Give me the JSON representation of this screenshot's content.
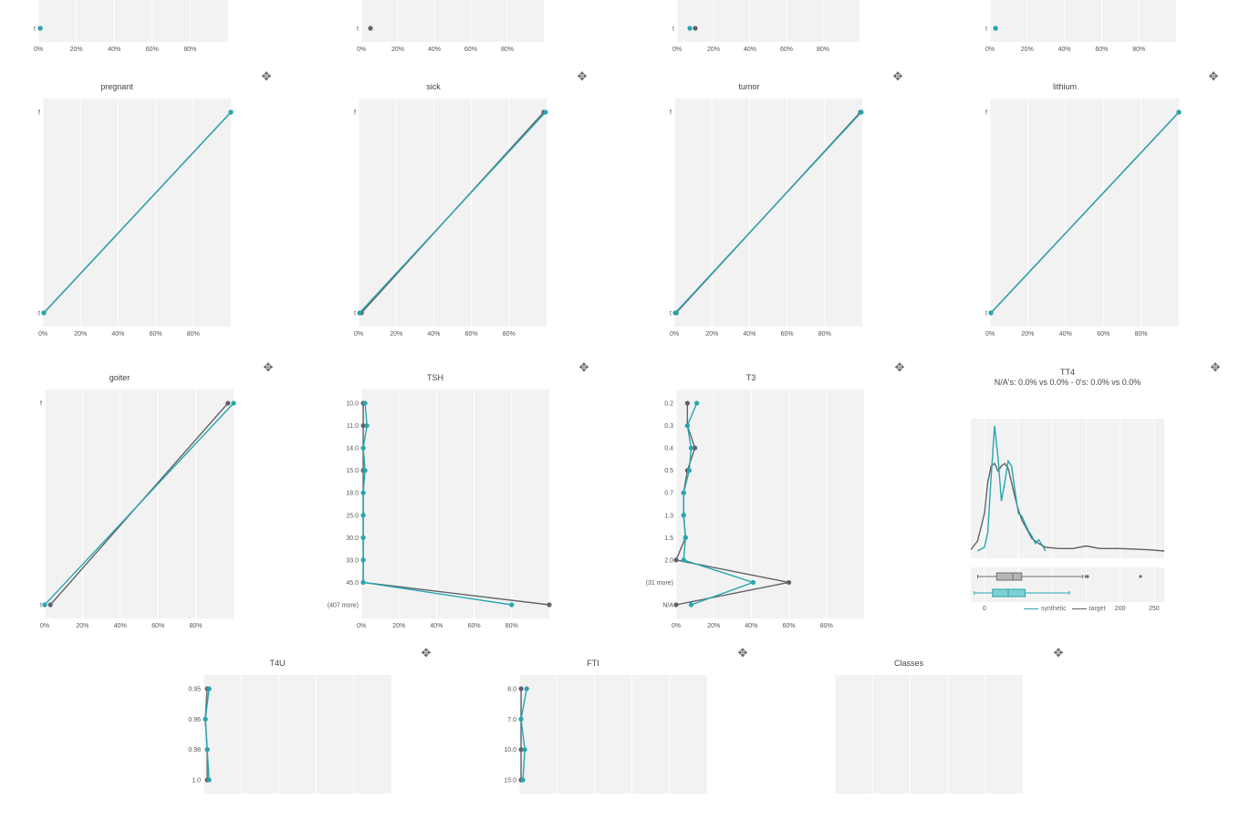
{
  "colors": {
    "synthetic": "#26a6b0",
    "target": "#5f6368",
    "plot_bg": "#f2f2f2",
    "grid": "#ffffff",
    "icon": "#6b6b6b"
  },
  "legend": {
    "synthetic": "synthetic",
    "target": "target"
  },
  "move_icon_glyph": "✥",
  "chart_data": [
    {
      "id": "c0",
      "type": "line",
      "title": "",
      "categories": [
        "t"
      ],
      "xticks": [
        "0%",
        "20%",
        "40%",
        "60%",
        "80%"
      ],
      "xlim": [
        0,
        100
      ],
      "series": [
        {
          "name": "target",
          "values": [
            1
          ]
        },
        {
          "name": "synthetic",
          "values": [
            1
          ]
        }
      ]
    },
    {
      "id": "c1",
      "type": "line",
      "title": "",
      "categories": [
        "t"
      ],
      "xticks": [
        "0%",
        "20%",
        "40%",
        "60%",
        "80%"
      ],
      "xlim": [
        0,
        100
      ],
      "series": [
        {
          "name": "target",
          "values": [
            5
          ]
        }
      ]
    },
    {
      "id": "c2",
      "type": "line",
      "title": "",
      "categories": [
        "t"
      ],
      "xticks": [
        "0%",
        "20%",
        "40%",
        "60%",
        "80%"
      ],
      "xlim": [
        0,
        100
      ],
      "series": [
        {
          "name": "target",
          "values": [
            10
          ]
        },
        {
          "name": "synthetic",
          "values": [
            7
          ]
        }
      ]
    },
    {
      "id": "c3",
      "type": "line",
      "title": "",
      "categories": [
        "t"
      ],
      "xticks": [
        "0%",
        "20%",
        "40%",
        "60%",
        "80%"
      ],
      "xlim": [
        0,
        100
      ],
      "series": [
        {
          "name": "target",
          "values": [
            3
          ]
        },
        {
          "name": "synthetic",
          "values": [
            3
          ]
        }
      ]
    },
    {
      "id": "pregnant",
      "type": "line",
      "title": "pregnant",
      "categories": [
        "f",
        "t"
      ],
      "xticks": [
        "0%",
        "20%",
        "40%",
        "60%",
        "80%"
      ],
      "xlim": [
        0,
        100
      ],
      "series": [
        {
          "name": "target",
          "values": [
            100,
            0.5
          ]
        },
        {
          "name": "synthetic",
          "values": [
            100,
            0.5
          ]
        }
      ]
    },
    {
      "id": "sick",
      "type": "line",
      "title": "sick",
      "categories": [
        "f",
        "t"
      ],
      "xticks": [
        "0%",
        "20%",
        "40%",
        "60%",
        "80%"
      ],
      "xlim": [
        0,
        100
      ],
      "series": [
        {
          "name": "target",
          "values": [
            98.5,
            1.5
          ]
        },
        {
          "name": "synthetic",
          "values": [
            99.5,
            0.5
          ]
        }
      ]
    },
    {
      "id": "tumor",
      "type": "line",
      "title": "tumor",
      "categories": [
        "f",
        "t"
      ],
      "xticks": [
        "0%",
        "20%",
        "40%",
        "60%",
        "80%"
      ],
      "xlim": [
        0,
        100
      ],
      "series": [
        {
          "name": "target",
          "values": [
            99,
            1
          ]
        },
        {
          "name": "synthetic",
          "values": [
            99.5,
            0.5
          ]
        }
      ]
    },
    {
      "id": "lithium",
      "type": "line",
      "title": "lithium",
      "categories": [
        "f",
        "t"
      ],
      "xticks": [
        "0%",
        "20%",
        "40%",
        "60%",
        "80%"
      ],
      "xlim": [
        0,
        100
      ],
      "series": [
        {
          "name": "target",
          "values": [
            100,
            0.5
          ]
        },
        {
          "name": "synthetic",
          "values": [
            100,
            0.5
          ]
        }
      ]
    },
    {
      "id": "goiter",
      "type": "line",
      "title": "goiter",
      "categories": [
        "f",
        "t"
      ],
      "xticks": [
        "0%",
        "20%",
        "40%",
        "60%",
        "80%"
      ],
      "xlim": [
        0,
        100
      ],
      "series": [
        {
          "name": "target",
          "values": [
            97,
            3
          ]
        },
        {
          "name": "synthetic",
          "values": [
            100,
            0
          ]
        }
      ]
    },
    {
      "id": "TSH",
      "type": "line",
      "title": "TSH",
      "categories": [
        "10.0",
        "11.0",
        "14.0",
        "15.0",
        "18.0",
        "25.0",
        "30.0",
        "33.0",
        "45.0",
        "(407 more)"
      ],
      "xticks": [
        "0%",
        "20%",
        "40%",
        "60%",
        "80%"
      ],
      "xlim": [
        0,
        100
      ],
      "series": [
        {
          "name": "target",
          "values": [
            1,
            1,
            1,
            1,
            1,
            1,
            1,
            1,
            1,
            100
          ]
        },
        {
          "name": "synthetic",
          "values": [
            2,
            3,
            1,
            2,
            1,
            1,
            1,
            1,
            1,
            80
          ]
        }
      ]
    },
    {
      "id": "T3",
      "type": "line",
      "title": "T3",
      "categories": [
        "0.2",
        "0.3",
        "0.4",
        "0.5",
        "0.7",
        "1.3",
        "1.5",
        "2.0",
        "(31 more)",
        "N/A"
      ],
      "xticks": [
        "0%",
        "20%",
        "40%",
        "60%",
        "80%"
      ],
      "xlim": [
        0,
        100
      ],
      "series": [
        {
          "name": "target",
          "values": [
            6,
            6,
            10,
            6,
            4,
            4,
            5,
            0,
            60,
            0
          ]
        },
        {
          "name": "synthetic",
          "values": [
            11,
            6,
            8,
            7,
            4,
            4,
            5,
            4,
            41,
            8
          ]
        }
      ]
    },
    {
      "id": "T4U",
      "type": "line",
      "title": "T4U",
      "categories": [
        "0.95",
        "0.96",
        "0.98",
        "1.0"
      ],
      "xticks": [],
      "xlim": [
        0,
        100
      ],
      "series": [
        {
          "name": "target",
          "values": [
            2,
            1,
            2,
            2
          ]
        },
        {
          "name": "synthetic",
          "values": [
            3,
            1,
            2,
            3
          ]
        }
      ]
    },
    {
      "id": "FTI",
      "type": "line",
      "title": "FTI",
      "categories": [
        "8.0",
        "7.0",
        "10.0",
        "15.0"
      ],
      "xticks": [],
      "xlim": [
        0,
        100
      ],
      "series": [
        {
          "name": "target",
          "values": [
            1,
            1,
            1,
            1
          ]
        },
        {
          "name": "synthetic",
          "values": [
            4,
            1,
            3,
            2
          ]
        }
      ]
    },
    {
      "id": "Classes",
      "type": "line",
      "title": "Classes",
      "categories": [],
      "xticks": [],
      "xlim": [
        0,
        100
      ],
      "series": []
    },
    {
      "id": "TT4",
      "type": "area",
      "title": "TT4",
      "subtitle": "N/A's: 0.0% vs 0.0% - 0's: 0.0% vs 0.0%",
      "xlim": [
        -20,
        265
      ],
      "xticks": [
        0,
        50,
        100,
        150,
        200,
        250
      ],
      "xtick_labels": [
        "0",
        "",
        "",
        "",
        "200",
        "250"
      ],
      "density": {
        "synthetic": [
          [
            -10,
            0
          ],
          [
            0,
            3
          ],
          [
            5,
            15
          ],
          [
            10,
            60
          ],
          [
            15,
            100
          ],
          [
            20,
            75
          ],
          [
            25,
            40
          ],
          [
            30,
            55
          ],
          [
            35,
            72
          ],
          [
            40,
            68
          ],
          [
            45,
            48
          ],
          [
            50,
            30
          ],
          [
            55,
            28
          ],
          [
            60,
            22
          ],
          [
            65,
            16
          ],
          [
            70,
            12
          ],
          [
            75,
            6
          ],
          [
            80,
            9
          ],
          [
            85,
            5
          ],
          [
            90,
            0
          ]
        ],
        "target": [
          [
            -20,
            1
          ],
          [
            -10,
            8
          ],
          [
            0,
            30
          ],
          [
            5,
            55
          ],
          [
            10,
            68
          ],
          [
            15,
            70
          ],
          [
            20,
            64
          ],
          [
            25,
            68
          ],
          [
            30,
            70
          ],
          [
            35,
            66
          ],
          [
            40,
            55
          ],
          [
            45,
            43
          ],
          [
            50,
            33
          ],
          [
            55,
            25
          ],
          [
            60,
            20
          ],
          [
            65,
            15
          ],
          [
            70,
            10
          ],
          [
            80,
            6
          ],
          [
            90,
            3
          ],
          [
            110,
            2
          ],
          [
            130,
            2
          ],
          [
            150,
            4
          ],
          [
            170,
            2
          ],
          [
            200,
            2
          ],
          [
            240,
            1
          ],
          [
            265,
            0
          ]
        ]
      },
      "boxplot": {
        "target": {
          "q1": 18,
          "median": 42,
          "q3": 55,
          "whisker_low": -10,
          "whisker_high": 145,
          "outliers": [
            150,
            152,
            230
          ]
        },
        "synthetic": {
          "q1": 12,
          "median": 35,
          "q3": 60,
          "whisker_low": -15,
          "whisker_high": 125,
          "outliers": []
        }
      }
    }
  ]
}
